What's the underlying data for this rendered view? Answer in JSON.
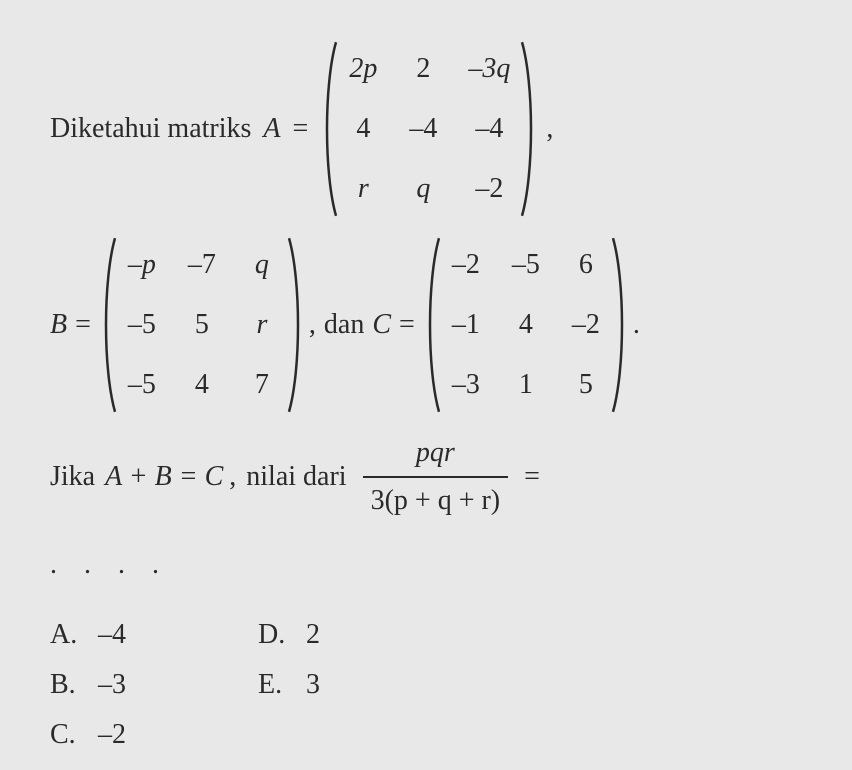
{
  "line1_text": "Diketahui  matriks",
  "var_A": "A",
  "var_B": "B",
  "var_C": "C",
  "eq": "=",
  "comma": ",",
  "period": ".",
  "dan": "dan",
  "matrixA": {
    "r1c1": "2p",
    "r1c2": "2",
    "r1c3": "–3q",
    "r2c1": "4",
    "r2c2": "–4",
    "r2c3": "–4",
    "r3c1": "r",
    "r3c2": "q",
    "r3c3": "–2"
  },
  "matrixB": {
    "r1c1": "–p",
    "r1c2": "–7",
    "r1c3": "q",
    "r2c1": "–5",
    "r2c2": "5",
    "r2c3": "r",
    "r3c1": "–5",
    "r3c2": "4",
    "r3c3": "7"
  },
  "matrixC": {
    "r1c1": "–2",
    "r1c2": "–5",
    "r1c3": "6",
    "r2c1": "–1",
    "r2c2": "4",
    "r2c3": "–2",
    "r3c1": "–3",
    "r3c2": "1",
    "r3c3": "5"
  },
  "line3": {
    "jika": "Jika",
    "aplusb": "A + B = C",
    "nilai": "nilai  dari",
    "num": "pqr",
    "den": "3(p + q + r)"
  },
  "dots": ". . . .",
  "options": {
    "A": {
      "label": "A.",
      "val": "–4"
    },
    "B": {
      "label": "B.",
      "val": "–3"
    },
    "C": {
      "label": "C.",
      "val": "–2"
    },
    "D": {
      "label": "D.",
      "val": "2"
    },
    "E": {
      "label": "E.",
      "val": "3"
    }
  },
  "paren_stroke": "#2a2a2a",
  "paren_stroke_width": 2.5
}
